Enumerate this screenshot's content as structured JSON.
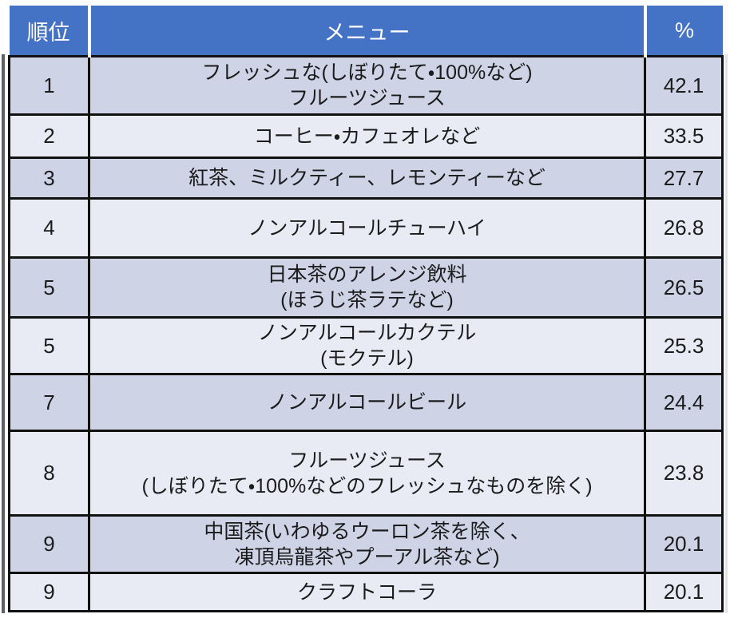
{
  "colors": {
    "header_bg": "#4472C4",
    "header_text": "#ffffff",
    "row_band_dark": "#CED3E6",
    "row_band_light": "#E9EBF4",
    "border": "#111111"
  },
  "table": {
    "headers": {
      "rank": "順位",
      "menu": "メニュー",
      "percent": "%"
    },
    "rows": [
      {
        "rank": "1",
        "menu": "フレッシュな(しぼりたて・100%など)\nフルーツジュース",
        "percent": "42.1"
      },
      {
        "rank": "2",
        "menu": "コーヒー・カフェオレなど",
        "percent": "33.5"
      },
      {
        "rank": "3",
        "menu": "紅茶、ミルクティー、レモンティーなど",
        "percent": "27.7"
      },
      {
        "rank": "4",
        "menu": "ノンアルコールチューハイ",
        "percent": "26.8"
      },
      {
        "rank": "5",
        "menu": "日本茶のアレンジ飲料\n(ほうじ茶ラテなど)",
        "percent": "26.5"
      },
      {
        "rank": "5",
        "menu": "ノンアルコールカクテル\n(モクテル)",
        "percent": "25.3"
      },
      {
        "rank": "7",
        "menu": "ノンアルコールビール",
        "percent": "24.4"
      },
      {
        "rank": "8",
        "menu": "フルーツジュース\n(しぼりたて・100%などのフレッシュなものを除く)",
        "percent": "23.8"
      },
      {
        "rank": "9",
        "menu": "中国茶(いわゆるウーロン茶を除く、\n凍頂烏龍茶やプーアル茶など)",
        "percent": "20.1"
      },
      {
        "rank": "9",
        "menu": "クラフトコーラ",
        "percent": "20.1"
      }
    ]
  },
  "chart_data": {
    "type": "table",
    "columns": [
      "順位",
      "メニュー",
      "%"
    ],
    "rows": [
      [
        1,
        "フレッシュな(しぼりたて・100%など)フルーツジュース",
        42.1
      ],
      [
        2,
        "コーヒー・カフェオレなど",
        33.5
      ],
      [
        3,
        "紅茶、ミルクティー、レモンティーなど",
        27.7
      ],
      [
        4,
        "ノンアルコールチューハイ",
        26.8
      ],
      [
        5,
        "日本茶のアレンジ飲料(ほうじ茶ラテなど)",
        26.5
      ],
      [
        5,
        "ノンアルコールカクテル(モクテル)",
        25.3
      ],
      [
        7,
        "ノンアルコールビール",
        24.4
      ],
      [
        8,
        "フルーツジュース(しぼりたて・100%などのフレッシュなものを除く)",
        23.8
      ],
      [
        9,
        "中国茶(いわゆるウーロン茶を除く、凍頂烏龍茶やプーアル茶など)",
        20.1
      ],
      [
        9,
        "クラフトコーラ",
        20.1
      ]
    ]
  }
}
